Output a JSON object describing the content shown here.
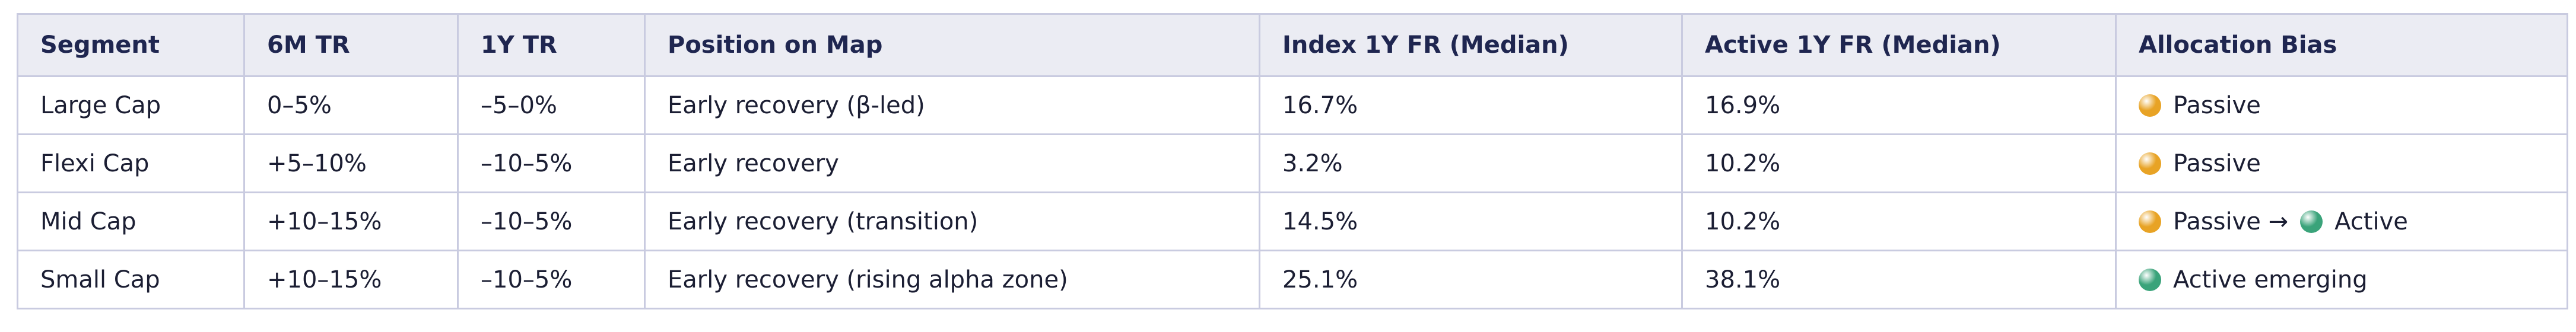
{
  "table": {
    "columns": [
      "Segment",
      "6M TR",
      "1Y TR",
      "Position on Map",
      "Index 1Y FR (Median)",
      "Active 1Y FR (Median)",
      "Allocation Bias"
    ],
    "rows": [
      [
        "Large Cap",
        "0–5%",
        "–5–0%",
        "Early recovery (β-led)",
        "16.7%",
        "16.9%",
        [
          {
            "dot": "#e8a325",
            "text": "Passive"
          }
        ]
      ],
      [
        "Flexi Cap",
        "+5–10%",
        "–10–5%",
        "Early recovery",
        "3.2%",
        "10.2%",
        [
          {
            "dot": "#e8a325",
            "text": "Passive"
          }
        ]
      ],
      [
        "Mid Cap",
        "+10–15%",
        "–10–5%",
        "Early recovery (transition)",
        "14.5%",
        "10.2%",
        [
          {
            "dot": "#e8a325",
            "text": "Passive →"
          },
          {
            "dot": "#3aa37a",
            "text": "Active"
          }
        ]
      ],
      [
        "Small Cap",
        "+10–15%",
        "–10–5%",
        "Early recovery (rising alpha zone)",
        "25.1%",
        "38.1%",
        [
          {
            "dot": "#3aa37a",
            "text": "Active emerging"
          }
        ]
      ]
    ]
  }
}
